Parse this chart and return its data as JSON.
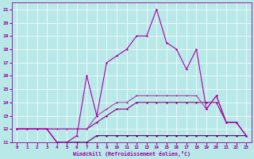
{
  "xlabel": "Windchill (Refroidissement éolien,°C)",
  "xlim": [
    -0.5,
    23.5
  ],
  "ylim": [
    11,
    21.5
  ],
  "xticks": [
    0,
    1,
    2,
    3,
    4,
    5,
    6,
    7,
    8,
    9,
    10,
    11,
    12,
    13,
    14,
    15,
    16,
    17,
    18,
    19,
    20,
    21,
    22,
    23
  ],
  "yticks": [
    11,
    12,
    13,
    14,
    15,
    16,
    17,
    18,
    19,
    20,
    21
  ],
  "bg_color": "#b8e8e8",
  "grid_color": "#ffffff",
  "line_color": "#990099",
  "lines": [
    {
      "x": [
        0,
        1,
        2,
        3,
        4,
        5,
        6,
        7,
        8,
        9,
        10,
        11,
        12,
        13,
        14,
        15,
        16,
        17,
        18,
        19,
        20,
        21,
        22,
        23
      ],
      "y": [
        12,
        12,
        12,
        12,
        11,
        11,
        11,
        11,
        11.5,
        11.5,
        11.5,
        11.5,
        11.5,
        11.5,
        11.5,
        11.5,
        11.5,
        11.5,
        11.5,
        11.5,
        11.5,
        11.5,
        11.5,
        11.5
      ],
      "color": "#660066",
      "lw": 0.8
    },
    {
      "x": [
        0,
        1,
        2,
        3,
        4,
        5,
        6,
        7,
        8,
        9,
        10,
        11,
        12,
        13,
        14,
        15,
        16,
        17,
        18,
        19,
        20,
        21,
        22,
        23
      ],
      "y": [
        12,
        12,
        12,
        12,
        12,
        12,
        12,
        12,
        12.5,
        13,
        13.5,
        13.5,
        14,
        14,
        14,
        14,
        14,
        14,
        14,
        14,
        14,
        12.5,
        12.5,
        11.5
      ],
      "color": "#880088",
      "lw": 0.8
    },
    {
      "x": [
        0,
        1,
        2,
        3,
        4,
        5,
        6,
        7,
        8,
        9,
        10,
        11,
        12,
        13,
        14,
        15,
        16,
        17,
        18,
        19,
        20,
        21,
        22,
        23
      ],
      "y": [
        12,
        12,
        12,
        12,
        12,
        12,
        12,
        12,
        13,
        13.5,
        14,
        14,
        14.5,
        14.5,
        14.5,
        14.5,
        14.5,
        14.5,
        14.5,
        13.5,
        14.5,
        12.5,
        12.5,
        11.5
      ],
      "color": "#aa44aa",
      "lw": 0.8
    },
    {
      "x": [
        0,
        1,
        2,
        3,
        4,
        5,
        6,
        7,
        8,
        9,
        10,
        11,
        12,
        13,
        14,
        15,
        16,
        17,
        18,
        19,
        20,
        21,
        22,
        23
      ],
      "y": [
        12,
        12,
        12,
        12,
        11,
        11,
        11.5,
        16,
        13,
        17,
        17.5,
        18,
        19,
        19,
        21,
        18.5,
        18,
        16.5,
        18,
        13.5,
        14.5,
        12.5,
        12.5,
        11.5
      ],
      "color": "#aa00aa",
      "lw": 0.8
    }
  ]
}
